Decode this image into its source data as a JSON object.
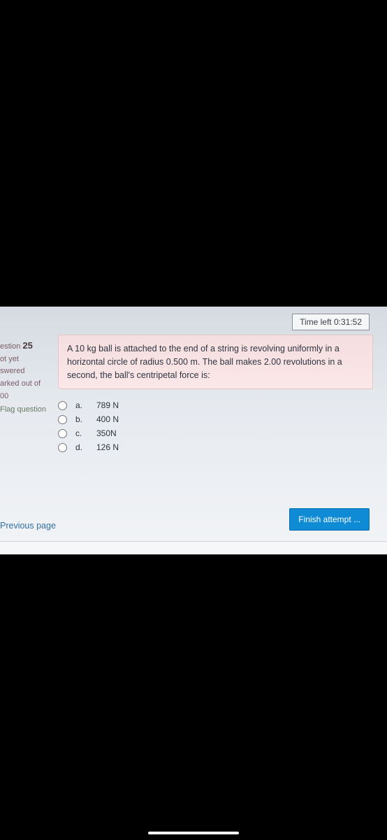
{
  "timer": {
    "label": "Time left 0:31:52"
  },
  "sidebar": {
    "question_prefix": "estion",
    "question_number": "25",
    "status1": "ot yet",
    "status2": "swered",
    "marked1": "arked out of",
    "marked2": "00",
    "flag": "Flag question"
  },
  "question": {
    "text": "A 10 kg ball is attached to the end of a string is revolving uniformly in a horizontal circle of radius 0.500 m. The ball makes 2.00 revolutions in a second, the ball's centripetal force is:"
  },
  "options": [
    {
      "letter": "a.",
      "value": "789 N"
    },
    {
      "letter": "b.",
      "value": "400 N"
    },
    {
      "letter": "c.",
      "value": "350N"
    },
    {
      "letter": "d.",
      "value": "126 N"
    }
  ],
  "nav": {
    "previous": "Previous page",
    "finish": "Finish attempt ..."
  },
  "colors": {
    "timer_border": "#8a8f97",
    "question_bg": "#f9e0e1",
    "finish_bg": "#0f8ad4",
    "link": "#2f6fa6"
  }
}
